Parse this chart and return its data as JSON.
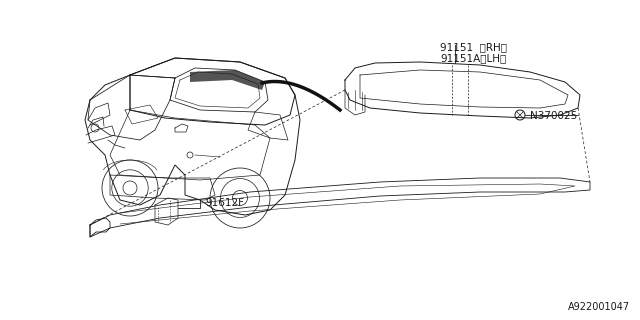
{
  "bg_color": "#ffffff",
  "line_color": "#1a1a1a",
  "dark_color": "#333333",
  "label_91151": "91151  〈RH〉",
  "label_91151a": "91151A〈LH〉",
  "label_N370025": "N370025",
  "label_91612F": "91612F",
  "footnote": "A922001047",
  "font_size": 7.5
}
